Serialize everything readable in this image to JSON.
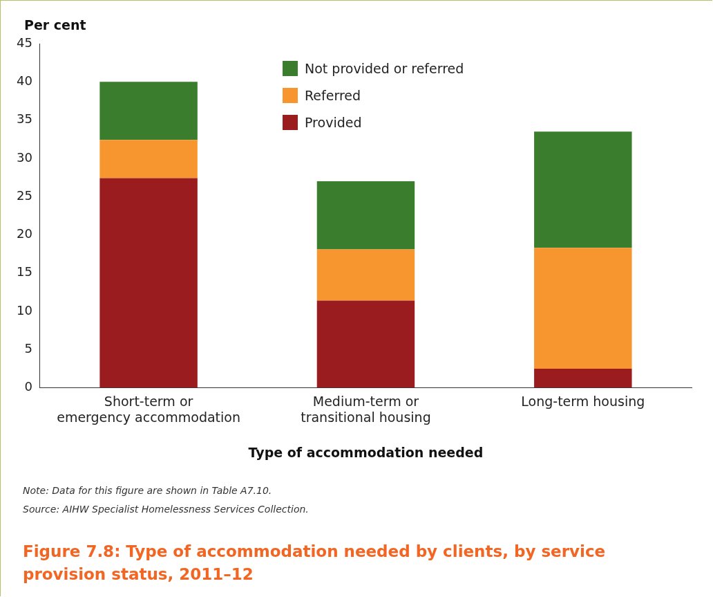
{
  "chart_data": {
    "type": "bar",
    "stacked": true,
    "title": "Figure 7.8: Type of accommodation needed by clients, by service provision status, 2011–12",
    "xlabel": "Type of accommodation needed",
    "ylabel": "Per cent",
    "categories": [
      "Short-term or emergency accommodation",
      "Medium-term or transitional housing",
      "Long-term housing"
    ],
    "series": [
      {
        "name": "Provided",
        "color": "#9b1c1f",
        "values": [
          27.4,
          11.4,
          2.5
        ]
      },
      {
        "name": "Referred",
        "color": "#f7962e",
        "values": [
          5.0,
          6.7,
          15.8
        ]
      },
      {
        "name": "Not provided or referred",
        "color": "#3a7d2c",
        "values": [
          7.6,
          8.9,
          15.2
        ]
      }
    ],
    "ylim": [
      0,
      45
    ],
    "yticks": [
      0,
      5,
      10,
      15,
      20,
      25,
      30,
      35,
      40,
      45
    ],
    "grid": false,
    "legend": "top",
    "annotations": [
      "Note: Data for this figure are shown in Table A7.10.",
      "Source: AIHW Specialist Homelessness Services Collection."
    ]
  }
}
